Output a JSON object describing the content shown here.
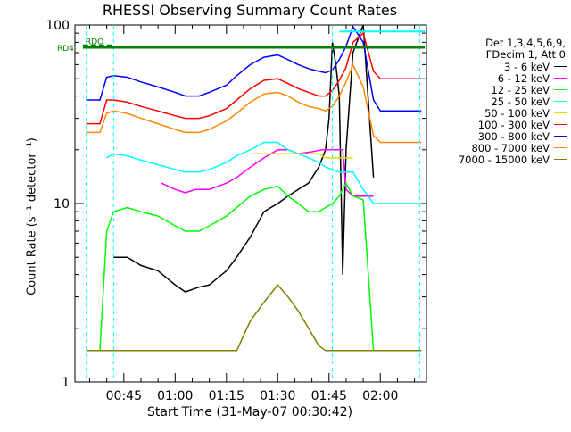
{
  "chart_data": {
    "type": "line",
    "title": "RHESSI Observing Summary Count Rates",
    "xlabel": "Start Time (31-May-07 00:30:42)",
    "ylabel": "Count Rate (s⁻¹ detector⁻¹)",
    "y_scale": "log",
    "ylim": [
      1,
      100
    ],
    "y_ticks": [
      "1",
      "10",
      "100"
    ],
    "x_ticks": [
      "00:45",
      "01:00",
      "01:15",
      "01:30",
      "01:45",
      "02:00"
    ],
    "x_tick_minutes": [
      45,
      60,
      75,
      90,
      105,
      120
    ],
    "xlim_minutes": [
      30.7,
      133.5
    ],
    "grid": false,
    "legend_position": "right",
    "legend_header": [
      "Det 1,3,4,5,6,9,",
      "FDecim 1, Att 0"
    ],
    "series": [
      {
        "name": "3 - 6 keV",
        "color": "#000000",
        "x": [
          34,
          36,
          40,
          42,
          46,
          50,
          55,
          60,
          63,
          67,
          70,
          75,
          78,
          82,
          86,
          88,
          90,
          93,
          96,
          99,
          102,
          104,
          105,
          106,
          107,
          108,
          109,
          110,
          112,
          115,
          118,
          120,
          124,
          128,
          132
        ],
        "y": [
          null,
          null,
          null,
          5,
          5,
          4.5,
          4.2,
          3.5,
          3.2,
          3.4,
          3.5,
          4.2,
          5,
          6.5,
          9,
          9.5,
          10,
          11,
          12,
          13,
          16,
          20,
          30,
          80,
          60,
          40,
          4,
          20,
          70,
          100,
          14,
          null,
          null,
          null,
          null
        ]
      },
      {
        "name": "6 - 12 keV",
        "color": "#ff00ff",
        "x": [
          56,
          58,
          60,
          63,
          66,
          70,
          75,
          78,
          82,
          86,
          90,
          93,
          96,
          100,
          103,
          105,
          107,
          108,
          109,
          110,
          112,
          115,
          118
        ],
        "y": [
          13,
          12.5,
          12,
          11.5,
          12,
          12,
          13,
          14,
          16,
          18,
          20,
          20,
          19,
          19.5,
          20,
          20,
          20,
          20,
          20,
          12,
          11,
          11,
          11
        ]
      },
      {
        "name": "12 - 25 keV",
        "color": "#00ff00",
        "x": [
          34,
          36,
          38,
          40,
          42,
          46,
          50,
          55,
          60,
          63,
          67,
          70,
          75,
          78,
          82,
          86,
          90,
          93,
          96,
          99,
          102,
          104,
          106,
          108,
          109,
          110,
          112,
          115,
          118,
          120,
          124,
          128,
          132
        ],
        "y": [
          1.5,
          1.5,
          1.5,
          7,
          9,
          9.5,
          9,
          8.5,
          7.5,
          7,
          7,
          7.5,
          8.5,
          9.5,
          11,
          12,
          12.5,
          11,
          10,
          9,
          9,
          9.5,
          10,
          11,
          12,
          13,
          11,
          10.5,
          1.5,
          1.5,
          1.5,
          1.5,
          1.5
        ]
      },
      {
        "name": "25 - 50 keV",
        "color": "#00ffff",
        "x": [
          34,
          36,
          38,
          40,
          42,
          46,
          50,
          55,
          60,
          63,
          67,
          70,
          75,
          78,
          82,
          86,
          90,
          93,
          96,
          99,
          102,
          104,
          106,
          108,
          110,
          112,
          115,
          118,
          120,
          124,
          128,
          132
        ],
        "y": [
          null,
          null,
          null,
          18,
          19,
          18.5,
          17.5,
          16.5,
          15.5,
          15,
          15,
          15.5,
          17,
          18.5,
          20,
          22,
          22,
          20,
          19,
          18,
          17,
          16,
          15.5,
          15,
          15,
          15,
          12,
          10,
          10,
          10,
          10,
          10
        ]
      },
      {
        "name": "50 - 100 keV",
        "color": "#dddd00",
        "x": [
          34,
          36,
          38,
          40,
          42,
          46,
          50,
          55,
          60,
          63,
          67,
          70,
          75,
          78,
          82,
          86,
          90,
          93,
          96,
          99,
          102,
          104,
          106,
          108,
          110,
          112,
          115,
          118,
          120,
          124,
          128,
          132
        ],
        "y": [
          null,
          null,
          null,
          null,
          null,
          null,
          null,
          null,
          null,
          null,
          null,
          null,
          null,
          null,
          19,
          19,
          19,
          19,
          19,
          19,
          19,
          18,
          18,
          18,
          18,
          18,
          null,
          null,
          null,
          null,
          null,
          null
        ]
      },
      {
        "name": "100 - 300 keV",
        "color": "#ff0000",
        "x": [
          34,
          36,
          38,
          40,
          42,
          46,
          50,
          55,
          60,
          63,
          67,
          70,
          75,
          78,
          82,
          86,
          90,
          93,
          96,
          99,
          102,
          104,
          106,
          108,
          110,
          112,
          115,
          118,
          120,
          124,
          128,
          132
        ],
        "y": [
          28,
          28,
          28,
          38,
          38,
          37,
          35,
          33,
          31,
          30,
          30,
          31,
          34,
          38,
          44,
          49,
          50,
          47,
          44,
          42,
          40,
          40,
          43,
          49,
          58,
          80,
          90,
          55,
          50,
          50,
          50,
          50
        ]
      },
      {
        "name": "300 - 800 keV",
        "color": "#0000ff",
        "x": [
          34,
          36,
          38,
          40,
          42,
          46,
          50,
          55,
          60,
          63,
          67,
          70,
          75,
          78,
          82,
          86,
          90,
          93,
          96,
          99,
          102,
          104,
          106,
          108,
          110,
          112,
          115,
          118,
          120,
          124,
          128,
          132
        ],
        "y": [
          38,
          38,
          38,
          51,
          52,
          51,
          48,
          45,
          42,
          40,
          40,
          42,
          46,
          52,
          60,
          66,
          68,
          64,
          60,
          57,
          55,
          54,
          56,
          64,
          76,
          98,
          80,
          38,
          33,
          33,
          33,
          33
        ]
      },
      {
        "name": "800 - 7000 keV",
        "color": "#ff8800",
        "x": [
          34,
          36,
          38,
          40,
          42,
          46,
          50,
          55,
          60,
          63,
          67,
          70,
          75,
          78,
          82,
          86,
          90,
          93,
          96,
          99,
          102,
          104,
          106,
          108,
          110,
          112,
          115,
          118,
          120,
          124,
          128,
          132
        ],
        "y": [
          25,
          25,
          25,
          32,
          33,
          32,
          30,
          28,
          26,
          25,
          25,
          26,
          29,
          32,
          37,
          41,
          42,
          40,
          37,
          35,
          34,
          33,
          35,
          40,
          48,
          60,
          45,
          24,
          22,
          22,
          22,
          22
        ]
      },
      {
        "name": "7000 - 15000 keV",
        "color": "#808000",
        "x": [
          34,
          36,
          38,
          40,
          42,
          46,
          50,
          55,
          60,
          63,
          67,
          70,
          75,
          78,
          82,
          86,
          90,
          93,
          96,
          99,
          102,
          104,
          106,
          108,
          110,
          112,
          115,
          118,
          120,
          124,
          128,
          132
        ],
        "y": [
          1.5,
          1.5,
          1.5,
          1.5,
          1.5,
          1.5,
          1.5,
          1.5,
          1.5,
          1.5,
          1.5,
          1.5,
          1.5,
          1.5,
          2.2,
          2.8,
          3.5,
          3.0,
          2.5,
          2.0,
          1.6,
          1.5,
          1.5,
          1.5,
          1.5,
          1.5,
          1.5,
          1.5,
          1.5,
          1.5,
          1.5,
          1.5
        ]
      }
    ],
    "annotations": {
      "rd4": {
        "label": "RD4",
        "color": "#008000",
        "value": 75,
        "x_start": 33,
        "x_end": 133
      },
      "rd0": {
        "label": "RDO",
        "color": "#008000",
        "value": 77,
        "x_start": 33,
        "x_end": 42
      },
      "top_line": {
        "color": "#00ffff",
        "value": 92,
        "x_start": 108,
        "x_end": 133
      },
      "markers_cyan": [
        34,
        42,
        106,
        131.5
      ]
    }
  }
}
